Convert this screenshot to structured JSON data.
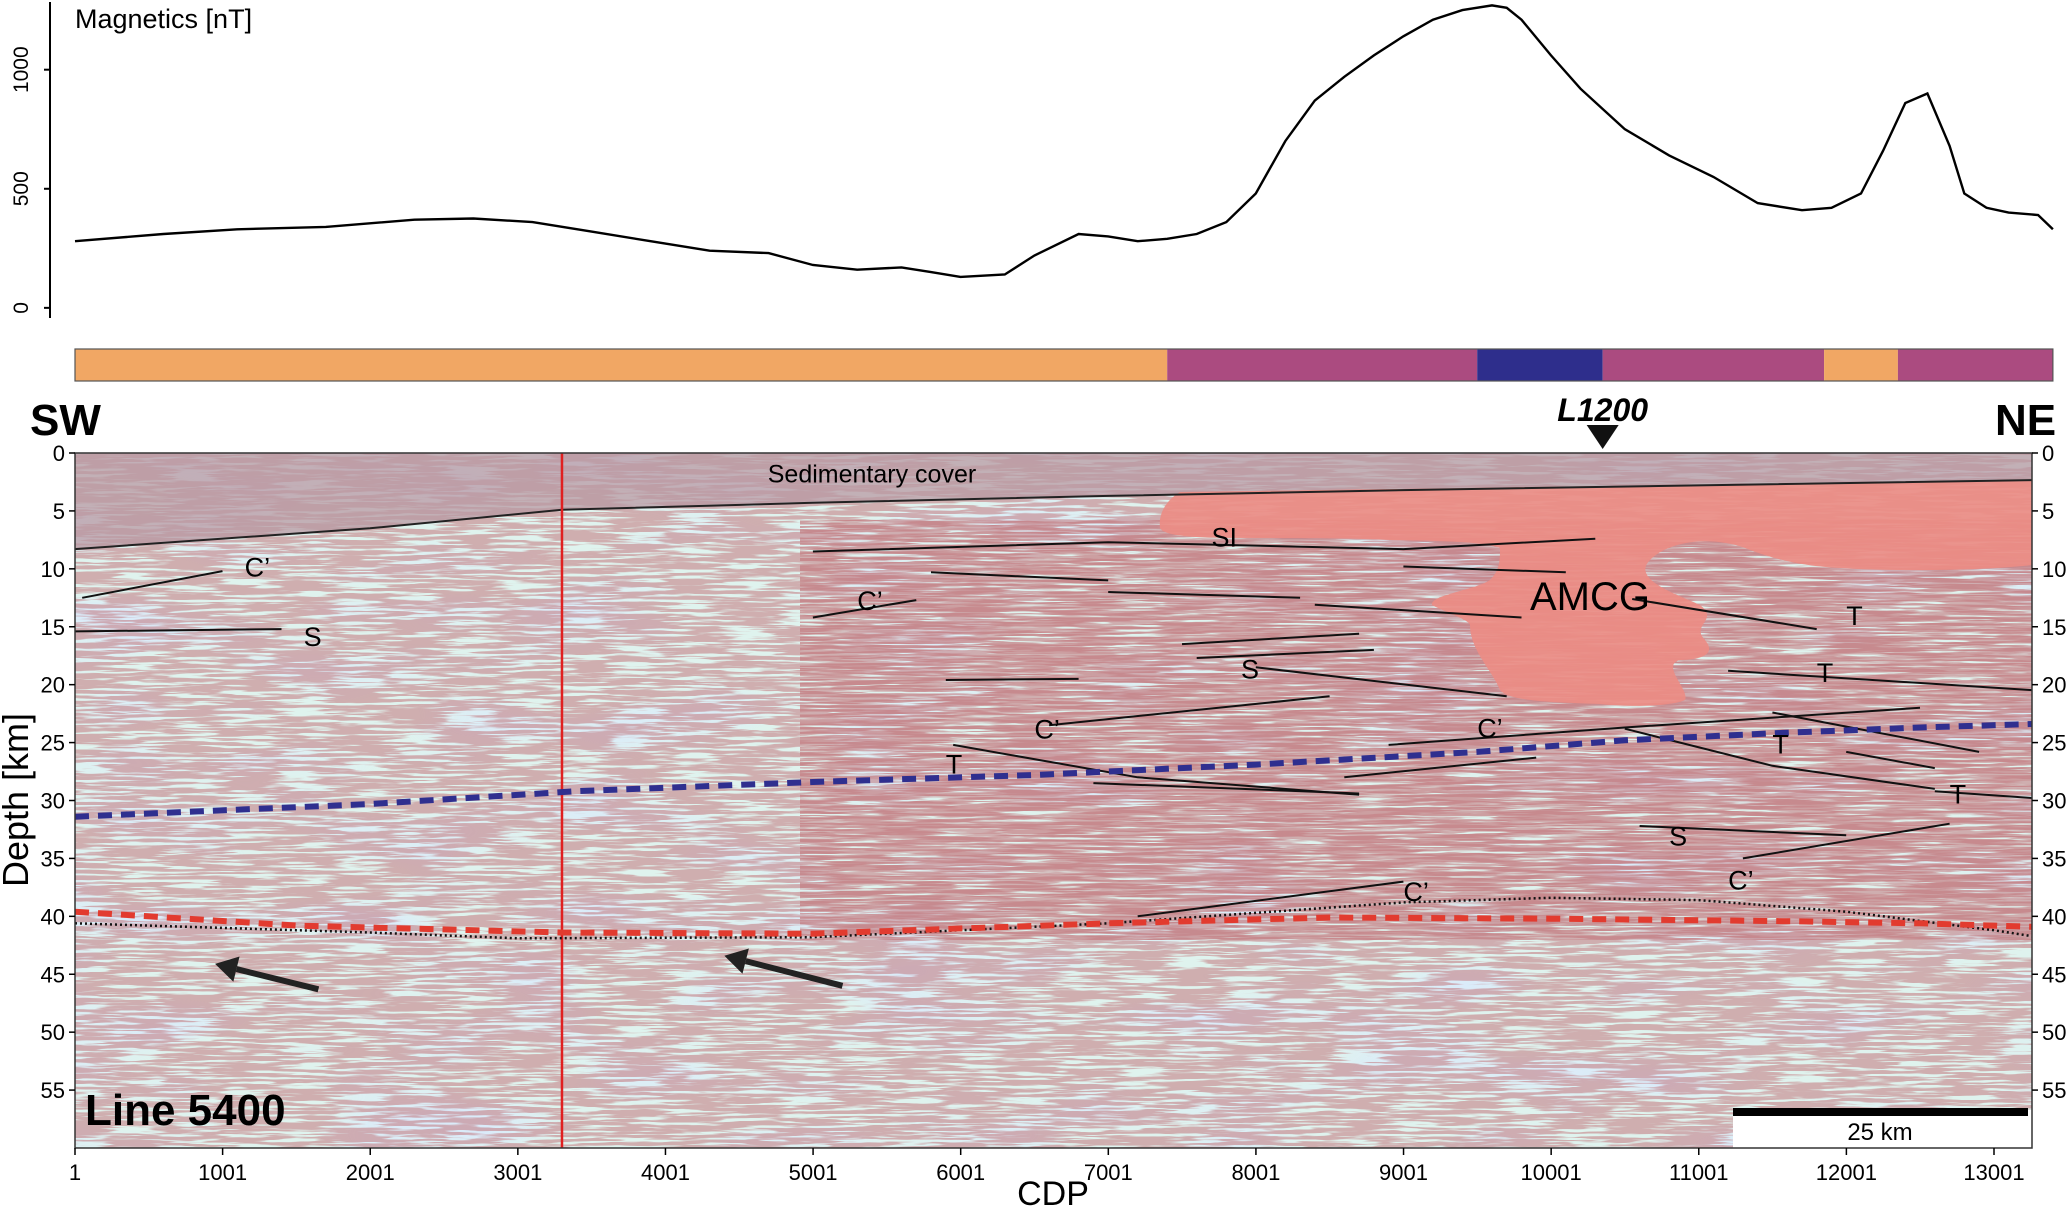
{
  "chart_data": [
    {
      "type": "line",
      "ylabel": "Magnetics [nT]",
      "ylim": [
        -30,
        1280
      ],
      "y_ticks": [
        "0",
        "500",
        "1000"
      ],
      "series": [
        {
          "x": [
            1,
            600,
            1100,
            1700,
            2300,
            2700,
            3100,
            3500,
            3900,
            4300,
            4700,
            5000,
            5300,
            5600,
            5800,
            6000,
            6300,
            6500,
            6800,
            7000,
            7200,
            7400,
            7600,
            7800,
            8000,
            8200,
            8400,
            8600,
            8800,
            9000,
            9200,
            9400,
            9600,
            9700,
            9800,
            10000,
            10200,
            10500,
            10800,
            11100,
            11400,
            11700,
            11900,
            12100,
            12250,
            12400,
            12550,
            12700,
            12800,
            12950,
            13100,
            13300,
            13400
          ],
          "values": [
            280,
            310,
            330,
            340,
            370,
            375,
            360,
            320,
            280,
            240,
            230,
            180,
            160,
            170,
            150,
            130,
            140,
            220,
            310,
            300,
            280,
            290,
            310,
            360,
            480,
            700,
            870,
            970,
            1060,
            1140,
            1210,
            1250,
            1270,
            1260,
            1210,
            1060,
            920,
            750,
            640,
            550,
            440,
            410,
            420,
            480,
            660,
            860,
            900,
            680,
            480,
            420,
            400,
            390,
            330
          ]
        }
      ]
    },
    {
      "type": "heatmap",
      "xlabel": "CDP",
      "ylabel": "Depth [km]",
      "xlim": [
        1,
        13500
      ],
      "ylim": [
        60,
        0
      ],
      "x_ticks": [
        "1",
        "1001",
        "2001",
        "3001",
        "4001",
        "5001",
        "6001",
        "7001",
        "8001",
        "9001",
        "10001",
        "11001",
        "12001",
        "13001"
      ],
      "y_ticks": [
        "0",
        "5",
        "10",
        "15",
        "20",
        "25",
        "30",
        "35",
        "40",
        "45",
        "50",
        "55"
      ],
      "colors": {
        "low_reflectivity": "#dff3ee",
        "reflection": "#8a2f33",
        "sedimentary_cover": "#c9b3b8",
        "amcg_body": "#ec8c84",
        "moho_blue": "#2f2f8f",
        "moho_red": "#e23b2f",
        "red_marker": "#e02020"
      },
      "sedimentary_base": {
        "x": [
          1,
          2000,
          3300,
          5000,
          7000,
          9000,
          11000,
          13500
        ],
        "y": [
          8.3,
          6.5,
          4.9,
          4.3,
          3.7,
          3.2,
          2.8,
          2.3
        ]
      },
      "blue_dashed": {
        "x": [
          1,
          2000,
          3400,
          5000,
          6500,
          8000,
          9500,
          10500,
          11500,
          12500,
          13500
        ],
        "y": [
          31.4,
          30.3,
          29.2,
          28.4,
          27.8,
          26.9,
          25.8,
          24.8,
          24.2,
          23.7,
          23.3
        ]
      },
      "red_dashed": {
        "x": [
          1,
          1500,
          3300,
          5000,
          7000,
          8500,
          10000,
          11500,
          12500,
          13500
        ],
        "y": [
          39.6,
          40.8,
          41.4,
          41.5,
          40.6,
          40.1,
          40.2,
          40.4,
          40.6,
          41.0
        ]
      },
      "black_dotted": {
        "x": [
          1,
          2000,
          3000,
          5000,
          7000,
          9000,
          10000,
          11000,
          12000,
          13000,
          13500
        ],
        "y": [
          40.6,
          41.4,
          41.9,
          41.8,
          40.6,
          38.8,
          38.4,
          38.6,
          39.6,
          41.2,
          42.2
        ]
      },
      "red_marker_cdp": 3300,
      "north_marker": {
        "label": "L1200",
        "cdp": 10350
      },
      "amcg_label": "AMCG",
      "line_label": "Line 5400",
      "scale_bar": "25 km",
      "sw_label": "SW",
      "ne_label": "NE",
      "annotations": [
        {
          "text": "Sedimentary cover",
          "x": 5400,
          "y": 1.7
        },
        {
          "text": "SI",
          "x": 7700,
          "y": 7.2
        },
        {
          "text": "C’",
          "x": 1150,
          "y": 9.8
        },
        {
          "text": "S",
          "x": 1550,
          "y": 15.8
        },
        {
          "text": "C’",
          "x": 5300,
          "y": 12.7
        },
        {
          "text": "S",
          "x": 7900,
          "y": 18.6
        },
        {
          "text": "C’",
          "x": 6500,
          "y": 23.8
        },
        {
          "text": "T",
          "x": 5900,
          "y": 26.8
        },
        {
          "text": "C’",
          "x": 9500,
          "y": 23.7
        },
        {
          "text": "T",
          "x": 12000,
          "y": 14.0
        },
        {
          "text": "T",
          "x": 11800,
          "y": 18.9
        },
        {
          "text": "T",
          "x": 11500,
          "y": 25.1
        },
        {
          "text": "T",
          "x": 12700,
          "y": 29.4
        },
        {
          "text": "S",
          "x": 10800,
          "y": 33.0
        },
        {
          "text": "C’",
          "x": 9000,
          "y": 37.8
        },
        {
          "text": "C’",
          "x": 11200,
          "y": 36.8
        }
      ],
      "interpreted_lines": [
        {
          "x": [
            50,
            1000
          ],
          "y": [
            12.5,
            10.2
          ]
        },
        {
          "x": [
            1,
            1400
          ],
          "y": [
            15.4,
            15.2
          ]
        },
        {
          "x": [
            5000,
            5700
          ],
          "y": [
            14.2,
            12.7
          ]
        },
        {
          "x": [
            5000,
            7000,
            9000,
            10300
          ],
          "y": [
            8.5,
            7.7,
            8.3,
            7.4
          ]
        },
        {
          "x": [
            5800,
            7000
          ],
          "y": [
            10.3,
            11.0
          ]
        },
        {
          "x": [
            7000,
            8300
          ],
          "y": [
            12.0,
            12.5
          ]
        },
        {
          "x": [
            8400,
            9800
          ],
          "y": [
            13.1,
            14.2
          ]
        },
        {
          "x": [
            9000,
            10100
          ],
          "y": [
            9.8,
            10.3
          ]
        },
        {
          "x": [
            7500,
            8700
          ],
          "y": [
            16.5,
            15.6
          ]
        },
        {
          "x": [
            7600,
            8800
          ],
          "y": [
            17.7,
            17.0
          ]
        },
        {
          "x": [
            5900,
            6800
          ],
          "y": [
            19.6,
            19.5
          ]
        },
        {
          "x": [
            6600,
            8500
          ],
          "y": [
            23.5,
            21.0
          ]
        },
        {
          "x": [
            8000,
            9700
          ],
          "y": [
            18.5,
            21.0
          ]
        },
        {
          "x": [
            5950,
            7200,
            8700
          ],
          "y": [
            25.2,
            28.0,
            29.5
          ]
        },
        {
          "x": [
            6900,
            8700
          ],
          "y": [
            28.5,
            29.4
          ]
        },
        {
          "x": [
            8600,
            9900
          ],
          "y": [
            28.0,
            26.3
          ]
        },
        {
          "x": [
            8900,
            10500,
            12500
          ],
          "y": [
            25.2,
            23.7,
            22.0
          ]
        },
        {
          "x": [
            10500,
            11500,
            12600
          ],
          "y": [
            23.8,
            27.0,
            29.0
          ]
        },
        {
          "x": [
            11500,
            12900
          ],
          "y": [
            22.4,
            25.8
          ]
        },
        {
          "x": [
            12000,
            12600
          ],
          "y": [
            25.8,
            27.2
          ]
        },
        {
          "x": [
            12600,
            13500
          ],
          "y": [
            29.2,
            30.0
          ]
        },
        {
          "x": [
            10600,
            12000
          ],
          "y": [
            32.2,
            33.0
          ]
        },
        {
          "x": [
            7200,
            9000
          ],
          "y": [
            40.0,
            37.0
          ]
        },
        {
          "x": [
            11300,
            12700
          ],
          "y": [
            35.0,
            32.0
          ]
        },
        {
          "x": [
            10550,
            11800
          ],
          "y": [
            12.6,
            15.2
          ]
        },
        {
          "x": [
            11200,
            13300
          ],
          "y": [
            18.8,
            20.5
          ]
        }
      ],
      "arrows": [
        {
          "from": [
            1650,
            46.3
          ],
          "to": [
            950,
            44.1
          ]
        },
        {
          "from": [
            5200,
            46.0
          ],
          "to": [
            4400,
            43.4
          ]
        }
      ]
    }
  ],
  "lithology_bar": [
    {
      "from": 1,
      "to": 7400,
      "color": "#f1a764"
    },
    {
      "from": 7400,
      "to": 9500,
      "color": "#ab4b80"
    },
    {
      "from": 9500,
      "to": 10350,
      "color": "#2e2e8c"
    },
    {
      "from": 10350,
      "to": 11850,
      "color": "#ab4b80"
    },
    {
      "from": 11850,
      "to": 12350,
      "color": "#f1a764"
    },
    {
      "from": 12350,
      "to": 13400,
      "color": "#ab4b80"
    }
  ]
}
